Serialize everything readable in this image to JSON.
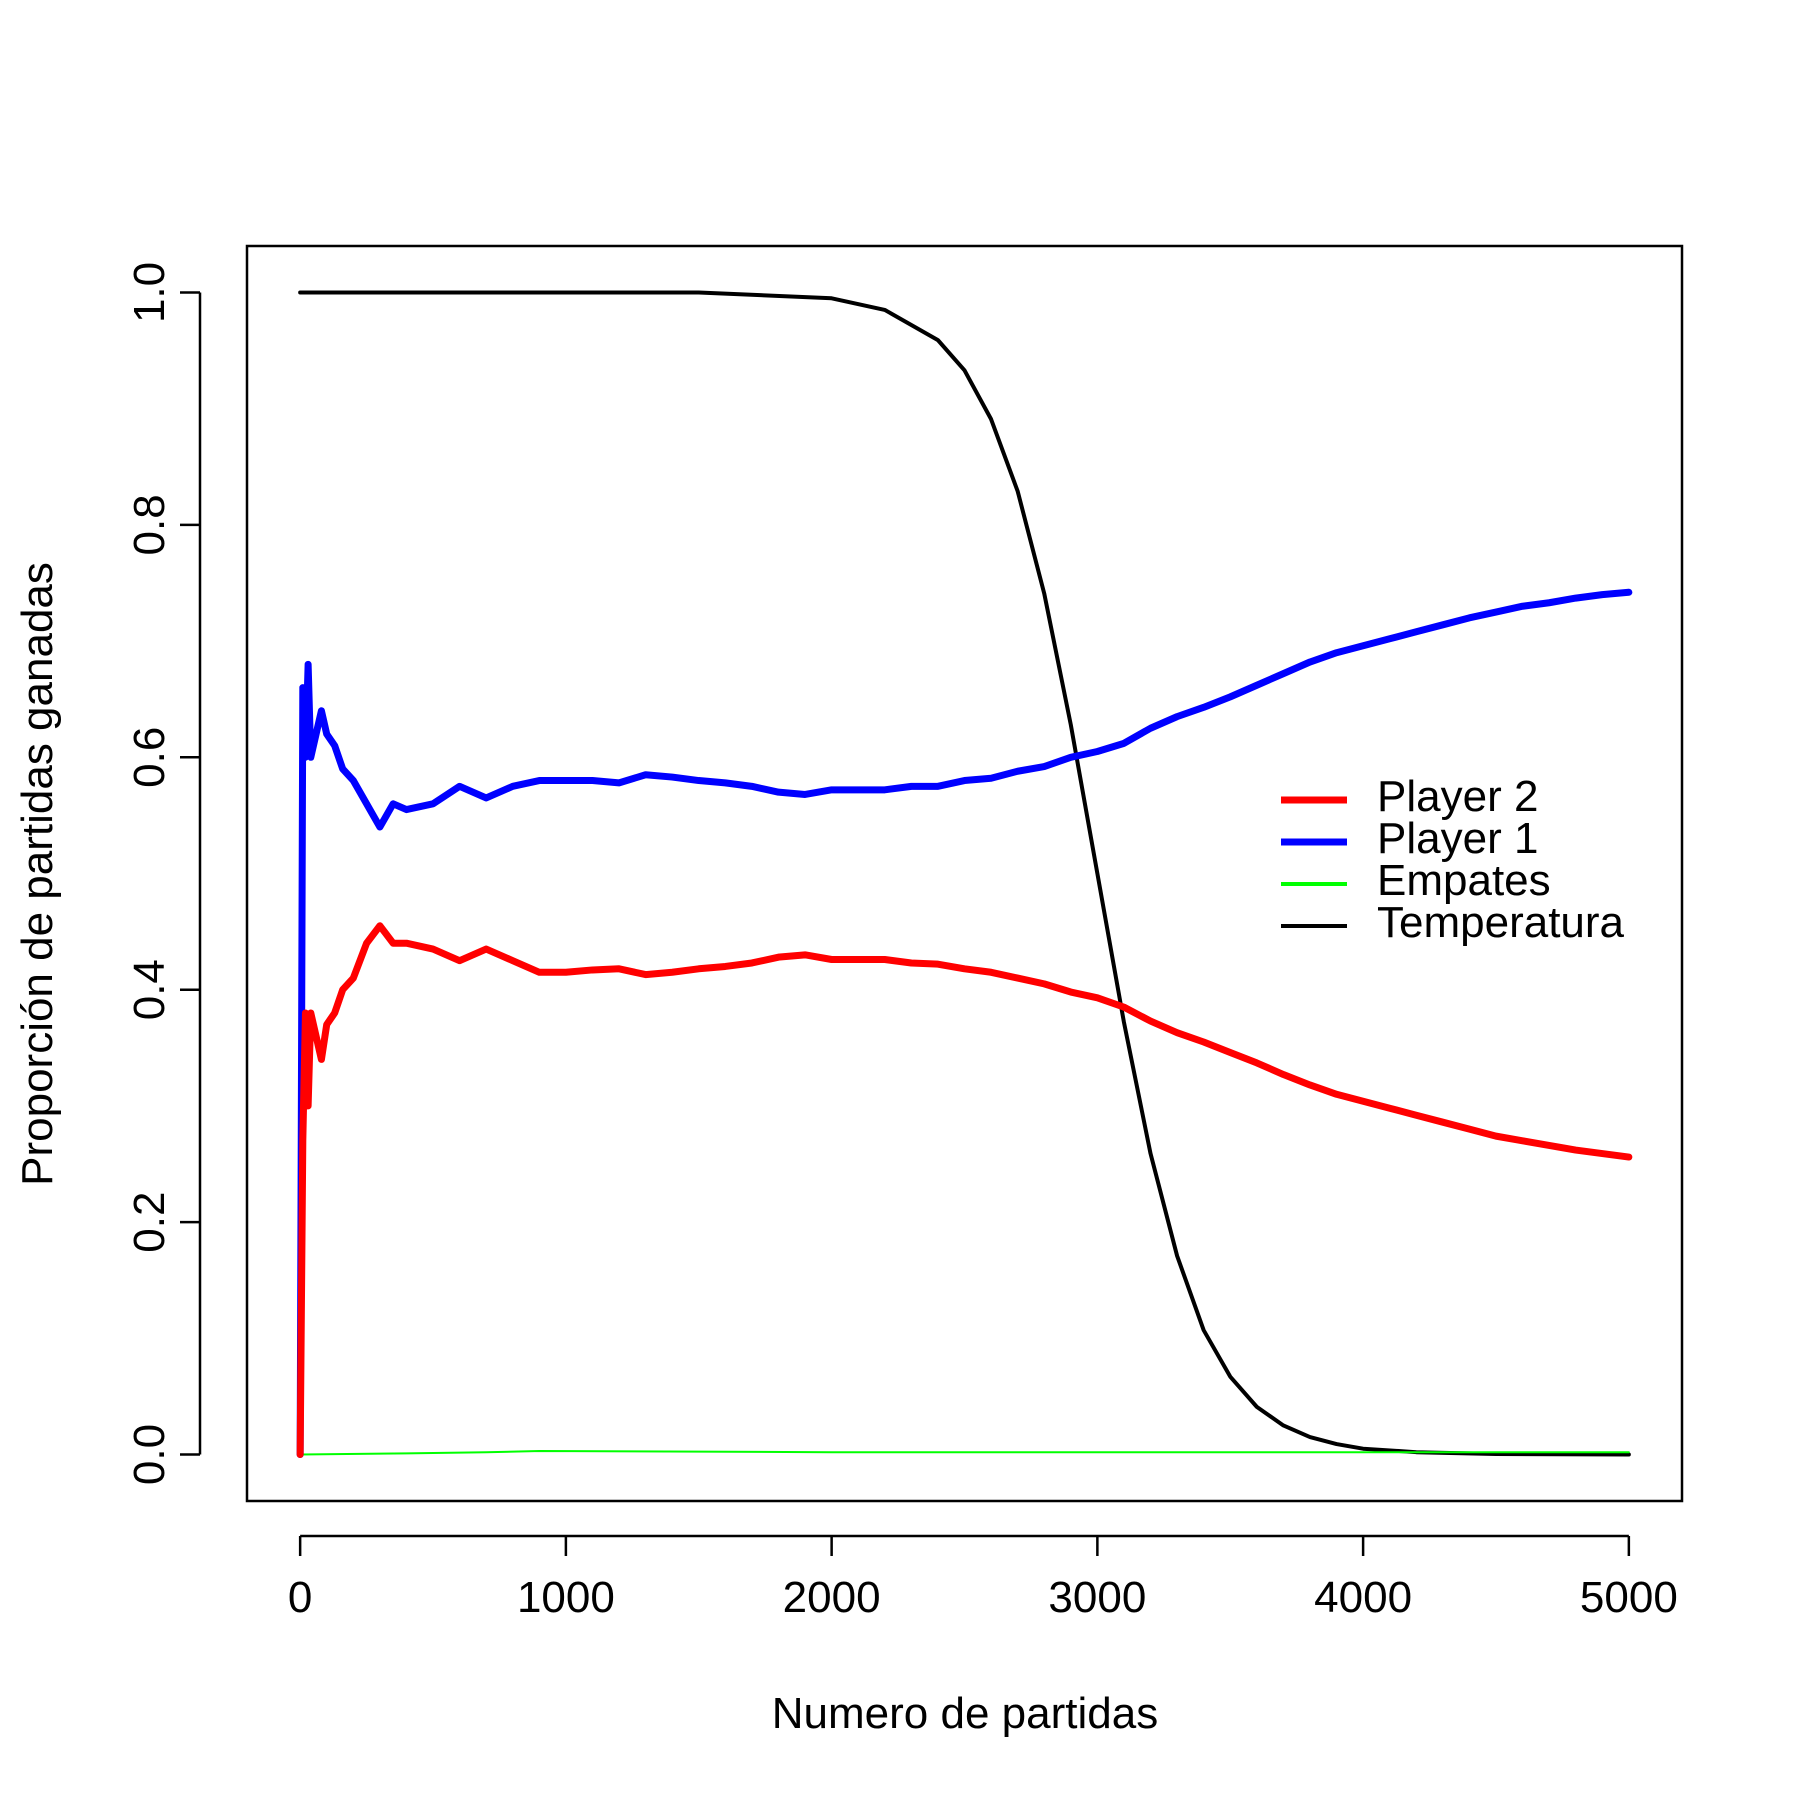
{
  "chart_data": {
    "type": "line",
    "xlabel": "Numero de partidas",
    "ylabel": "Proporción de partidas ganadas",
    "xlim": [
      -200,
      5200
    ],
    "ylim": [
      -0.04,
      1.04
    ],
    "xticks": [
      0,
      1000,
      2000,
      3000,
      4000,
      5000
    ],
    "yticks": [
      {
        "value": 0,
        "label": "0.0"
      },
      {
        "value": 0.2,
        "label": "0.2"
      },
      {
        "value": 0.4,
        "label": "0.4"
      },
      {
        "value": 0.6,
        "label": "0.6"
      },
      {
        "value": 0.8,
        "label": "0.8"
      },
      {
        "value": 1,
        "label": "1.0"
      }
    ],
    "legend": "right",
    "series": [
      {
        "name": "Player 2",
        "color": "#ff0000",
        "width": 7,
        "x": [
          0,
          10,
          20,
          30,
          40,
          60,
          80,
          100,
          130,
          160,
          200,
          250,
          300,
          350,
          400,
          500,
          600,
          700,
          800,
          900,
          1000,
          1100,
          1200,
          1300,
          1400,
          1500,
          1600,
          1700,
          1800,
          1900,
          2000,
          2100,
          2200,
          2300,
          2400,
          2500,
          2600,
          2700,
          2800,
          2900,
          3000,
          3100,
          3200,
          3300,
          3400,
          3500,
          3600,
          3700,
          3800,
          3900,
          4000,
          4100,
          4200,
          4300,
          4400,
          4500,
          4600,
          4700,
          4800,
          4900,
          5000
        ],
        "values": [
          0,
          0.27,
          0.38,
          0.3,
          0.38,
          0.36,
          0.34,
          0.37,
          0.38,
          0.4,
          0.41,
          0.44,
          0.455,
          0.44,
          0.44,
          0.435,
          0.425,
          0.435,
          0.425,
          0.415,
          0.415,
          0.417,
          0.418,
          0.413,
          0.415,
          0.418,
          0.42,
          0.423,
          0.428,
          0.43,
          0.426,
          0.426,
          0.426,
          0.423,
          0.422,
          0.418,
          0.415,
          0.41,
          0.405,
          0.398,
          0.393,
          0.385,
          0.373,
          0.363,
          0.355,
          0.346,
          0.337,
          0.327,
          0.318,
          0.31,
          0.304,
          0.298,
          0.292,
          0.286,
          0.28,
          0.274,
          0.27,
          0.266,
          0.262,
          0.259,
          0.256
        ]
      },
      {
        "name": "Player 1",
        "color": "#0000ff",
        "width": 7,
        "x": [
          0,
          10,
          20,
          30,
          40,
          60,
          80,
          100,
          130,
          160,
          200,
          250,
          300,
          350,
          400,
          500,
          600,
          700,
          800,
          900,
          1000,
          1100,
          1200,
          1300,
          1400,
          1500,
          1600,
          1700,
          1800,
          1900,
          2000,
          2100,
          2200,
          2300,
          2400,
          2500,
          2600,
          2700,
          2800,
          2900,
          3000,
          3100,
          3200,
          3300,
          3400,
          3500,
          3600,
          3700,
          3800,
          3900,
          4000,
          4100,
          4200,
          4300,
          4400,
          4500,
          4600,
          4700,
          4800,
          4900,
          5000
        ],
        "values": [
          0,
          0.66,
          0.6,
          0.68,
          0.6,
          0.62,
          0.64,
          0.62,
          0.61,
          0.59,
          0.58,
          0.56,
          0.54,
          0.56,
          0.555,
          0.56,
          0.575,
          0.565,
          0.575,
          0.58,
          0.58,
          0.58,
          0.578,
          0.585,
          0.583,
          0.58,
          0.578,
          0.575,
          0.57,
          0.568,
          0.572,
          0.572,
          0.572,
          0.575,
          0.575,
          0.58,
          0.582,
          0.588,
          0.592,
          0.6,
          0.605,
          0.612,
          0.625,
          0.635,
          0.643,
          0.652,
          0.662,
          0.672,
          0.682,
          0.69,
          0.696,
          0.702,
          0.708,
          0.714,
          0.72,
          0.725,
          0.73,
          0.733,
          0.737,
          0.74,
          0.742
        ]
      },
      {
        "name": "Empates",
        "color": "#00ff00",
        "width": 2,
        "x": [
          0,
          400,
          700,
          900,
          2000,
          3000,
          4000,
          5000
        ],
        "values": [
          0,
          0.001,
          0.002,
          0.003,
          0.002,
          0.002,
          0.002,
          0.002
        ]
      },
      {
        "name": "Temperatura",
        "color": "#000000",
        "width": 4,
        "x": [
          0,
          1000,
          1500,
          2000,
          2200,
          2400,
          2500,
          2600,
          2700,
          2800,
          2900,
          3000,
          3100,
          3200,
          3300,
          3400,
          3500,
          3600,
          3700,
          3800,
          3900,
          4000,
          4200,
          4500,
          5000
        ],
        "values": [
          1,
          1,
          1,
          0.995,
          0.985,
          0.959,
          0.933,
          0.891,
          0.829,
          0.741,
          0.628,
          0.5,
          0.372,
          0.259,
          0.171,
          0.107,
          0.067,
          0.041,
          0.025,
          0.015,
          0.009,
          0.005,
          0.002,
          0.0004,
          0
        ]
      }
    ]
  }
}
